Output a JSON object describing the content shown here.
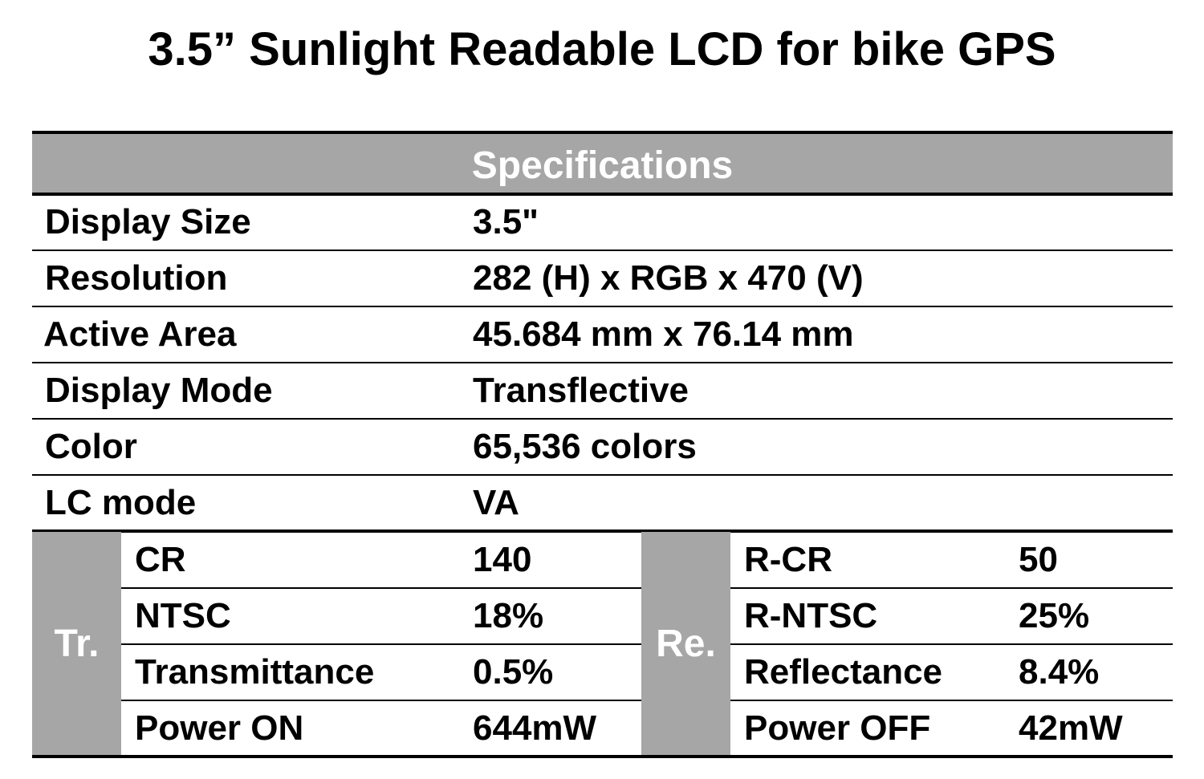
{
  "title": "3.5” Sunlight Readable LCD for bike GPS",
  "table": {
    "header": "Specifications",
    "rows": [
      {
        "label": "Display Size",
        "value": "3.5\""
      },
      {
        "label": "Resolution",
        "value": "282 (H) x RGB x 470 (V)"
      },
      {
        "label": "Active Area",
        "value": "45.684 mm x 76.14 mm"
      },
      {
        "label": "Display Mode",
        "value": "Transflective"
      },
      {
        "label": "Color",
        "value": "65,536 colors"
      },
      {
        "label": "LC mode",
        "value": "VA"
      }
    ],
    "transmissive": {
      "group_label": "Tr.",
      "rows": [
        {
          "label": "CR",
          "value": "140"
        },
        {
          "label": "NTSC",
          "value": "18%"
        },
        {
          "label": "Transmittance",
          "value": "0.5%"
        },
        {
          "label": "Power ON",
          "value": "644mW"
        }
      ]
    },
    "reflective": {
      "group_label": "Re.",
      "rows": [
        {
          "label": "R-CR",
          "value": "50"
        },
        {
          "label": "R-NTSC",
          "value": "25%"
        },
        {
          "label": "Reflectance",
          "value": "8.4%"
        },
        {
          "label": "Power OFF",
          "value": "42mW"
        }
      ]
    }
  }
}
